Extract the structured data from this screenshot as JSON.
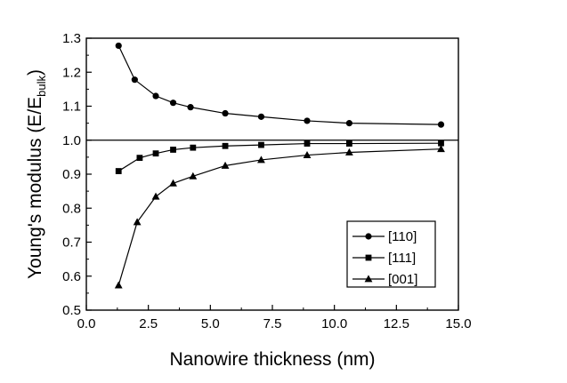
{
  "chart_data": {
    "type": "line",
    "xlabel": "Nanowire thickness (nm)",
    "ylabel": {
      "main": "Young's modulus (E/E",
      "sub": "bulk",
      "close": ")"
    },
    "xlim": [
      0.0,
      15.0
    ],
    "ylim": [
      0.5,
      1.3
    ],
    "x_ticks": [
      "0.0",
      "2.5",
      "5.0",
      "7.5",
      "10.0",
      "12.5",
      "15.0"
    ],
    "y_ticks": [
      "0.5",
      "0.6",
      "0.7",
      "0.8",
      "0.9",
      "1.0",
      "1.1",
      "1.2",
      "1.3"
    ],
    "reference_line_y": 1.0,
    "grid": false,
    "legend_position": "bottom-right",
    "series": [
      {
        "name": "[110]",
        "marker": "circle",
        "x": [
          1.3,
          1.95,
          2.8,
          3.5,
          4.2,
          5.6,
          7.05,
          8.9,
          10.6,
          14.3
        ],
        "y": [
          1.278,
          1.178,
          1.13,
          1.11,
          1.097,
          1.079,
          1.069,
          1.057,
          1.05,
          1.046
        ]
      },
      {
        "name": "[111]",
        "marker": "square",
        "x": [
          1.3,
          2.15,
          2.8,
          3.5,
          4.3,
          5.6,
          7.05,
          8.9,
          10.6,
          14.3
        ],
        "y": [
          0.909,
          0.948,
          0.961,
          0.972,
          0.978,
          0.983,
          0.986,
          0.99,
          0.99,
          0.991
        ]
      },
      {
        "name": "[001]",
        "marker": "triangle",
        "x": [
          1.3,
          2.05,
          2.8,
          3.5,
          4.3,
          5.6,
          7.05,
          8.9,
          10.6,
          14.3
        ],
        "y": [
          0.573,
          0.759,
          0.834,
          0.873,
          0.894,
          0.925,
          0.942,
          0.956,
          0.964,
          0.974
        ]
      }
    ]
  }
}
